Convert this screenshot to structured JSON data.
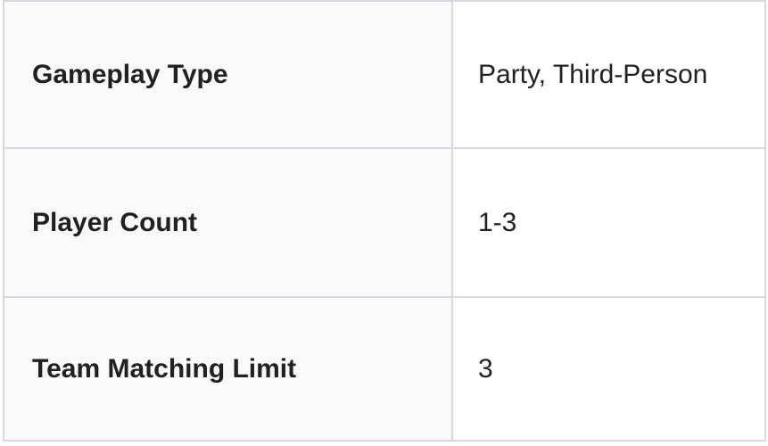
{
  "colors": {
    "label_cell_bg": "#f8f9fa",
    "value_cell_bg": "#ffffff",
    "border": "#d7d9dc",
    "text": "#202122"
  },
  "table": {
    "rows": [
      {
        "label": "Gameplay Type",
        "value": "Party, Third-Person"
      },
      {
        "label": "Player Count",
        "value": "1-3"
      },
      {
        "label": "Team Matching Limit",
        "value": "3"
      }
    ]
  }
}
